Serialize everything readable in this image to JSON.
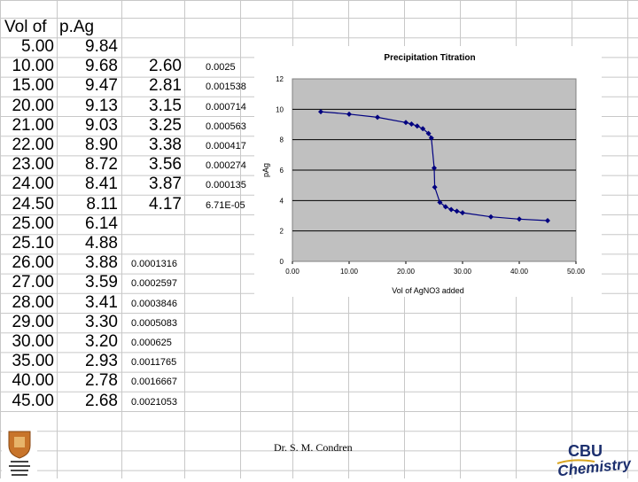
{
  "spreadsheet": {
    "header_vol": "Vol of ",
    "header_pag": "p.Ag",
    "vol": [
      "5.00",
      "10.00",
      "15.00",
      "20.00",
      "21.00",
      "22.00",
      "23.00",
      "24.00",
      "24.50",
      "25.00",
      "25.10",
      "26.00",
      "27.00",
      "28.00",
      "29.00",
      "30.00",
      "35.00",
      "40.00",
      "45.00"
    ],
    "pag": [
      "9.84",
      "9.68",
      "9.47",
      "9.13",
      "9.03",
      "8.90",
      "8.72",
      "8.41",
      "8.11",
      "6.14",
      "4.88",
      "3.88",
      "3.59",
      "3.41",
      "3.30",
      "3.20",
      "2.93",
      "2.78",
      "2.68"
    ],
    "pcl": [
      "",
      "2.60",
      "2.81",
      "3.15",
      "3.25",
      "3.38",
      "3.56",
      "3.87",
      "4.17",
      "",
      "",
      "",
      "",
      "",
      "",
      "",
      "",
      "",
      ""
    ],
    "cl_conc": [
      "",
      "0.0025",
      "0.001538",
      "0.000714",
      "0.000563",
      "0.000417",
      "0.000274",
      "0.000135",
      "6.71E-05",
      "",
      "",
      "",
      "",
      "",
      "",
      "",
      "",
      "",
      ""
    ],
    "ag_conc": [
      "",
      "",
      "",
      "",
      "",
      "",
      "",
      "",
      "",
      "",
      "",
      "0.0001316",
      "0.0002597",
      "0.0003846",
      "0.0005083",
      "0.000625",
      "0.0011765",
      "0.0016667",
      "0.0021053"
    ]
  },
  "chart_data": {
    "type": "scatter",
    "title": "Precipitation Titration",
    "xlabel": "Vol of AgNO3 added",
    "ylabel": "pAg",
    "xlim": [
      0,
      50
    ],
    "ylim": [
      0,
      12
    ],
    "x_ticks": [
      "0.00",
      "10.00",
      "20.00",
      "30.00",
      "40.00",
      "50.00"
    ],
    "y_ticks": [
      "0",
      "2",
      "4",
      "6",
      "8",
      "10",
      "12"
    ],
    "gridlines": "horizontal",
    "legend": "none",
    "series": [
      {
        "x": [
          5.0,
          10.0,
          15.0,
          20.0,
          21.0,
          22.0,
          23.0,
          24.0,
          24.5,
          25.0,
          25.1,
          26.0,
          27.0,
          28.0,
          29.0,
          30.0,
          35.0,
          40.0,
          45.0
        ],
        "y": [
          9.84,
          9.68,
          9.47,
          9.13,
          9.03,
          8.9,
          8.72,
          8.41,
          8.11,
          6.14,
          4.88,
          3.88,
          3.59,
          3.41,
          3.3,
          3.2,
          2.93,
          2.78,
          2.68
        ]
      }
    ],
    "colors": {
      "plot_area": "#c0c0c0",
      "series": "#000080"
    }
  },
  "footer": {
    "credit": "Dr. S. M. Condren",
    "logo_right_top": "CBU",
    "logo_right_bottom": "Chemistry"
  }
}
